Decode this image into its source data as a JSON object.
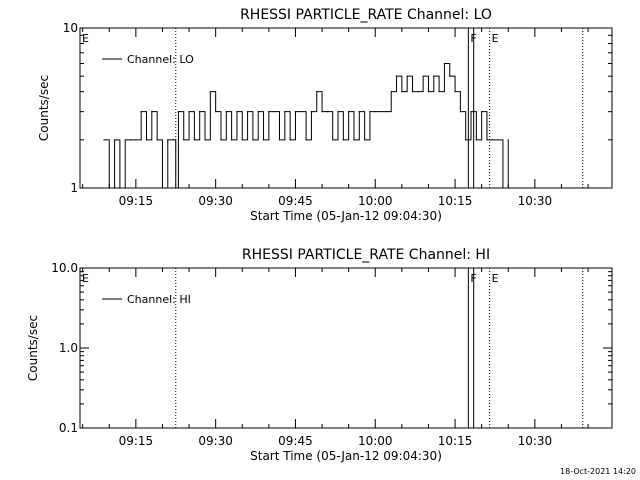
{
  "footer": {
    "timestamp": "18-Oct-2021 14:20"
  },
  "colors": {
    "background": "#ffffff",
    "ink": "#000000"
  },
  "chart_data": [
    {
      "type": "line",
      "title": "RHESSI PARTICLE_RATE Channel: LO",
      "xlabel": "Start Time (05-Jan-12 09:04:30)",
      "ylabel": "Counts/sec",
      "yscale": "log",
      "ylim": [
        1,
        10
      ],
      "y_ticks": [
        1,
        10
      ],
      "y_tick_labels": [
        "1",
        "10"
      ],
      "xlim": [
        "09:04:30",
        "10:44:30"
      ],
      "x_ticks": [
        "09:15",
        "09:30",
        "09:45",
        "10:00",
        "10:15",
        "10:30"
      ],
      "grid": false,
      "legend": {
        "placement": "top-left",
        "entries": [
          "Channel: LO"
        ]
      },
      "vlines": [
        {
          "time": "09:22:30",
          "style": "dotted"
        },
        {
          "time": "10:17:30",
          "style": "solid"
        },
        {
          "time": "10:18:30",
          "style": "solid"
        },
        {
          "time": "10:21:30",
          "style": "dotted"
        },
        {
          "time": "10:39:00",
          "style": "dotted"
        }
      ],
      "markers": [
        {
          "label": "E",
          "time": "09:04:30"
        },
        {
          "label": "F",
          "time": "10:17:30"
        },
        {
          "label": "E",
          "time": "10:21:30"
        }
      ],
      "series": [
        {
          "name": "Channel: LO",
          "x": [
            "09:09",
            "09:10",
            "09:11",
            "09:12",
            "09:13",
            "09:14",
            "09:15",
            "09:16",
            "09:17",
            "09:18",
            "09:19",
            "09:20",
            "09:21",
            "09:22",
            "09:22:30",
            "09:23",
            "09:24",
            "09:25",
            "09:26",
            "09:27",
            "09:28",
            "09:29",
            "09:30",
            "09:31",
            "09:32",
            "09:33",
            "09:34",
            "09:35",
            "09:36",
            "09:37",
            "09:38",
            "09:39",
            "09:40",
            "09:41",
            "09:42",
            "09:43",
            "09:44",
            "09:45",
            "09:46",
            "09:47",
            "09:48",
            "09:49",
            "09:50",
            "09:51",
            "09:52",
            "09:53",
            "09:54",
            "09:55",
            "09:56",
            "09:57",
            "09:58",
            "09:59",
            "10:00",
            "10:01",
            "10:02",
            "10:03",
            "10:04",
            "10:05",
            "10:06",
            "10:07",
            "10:08",
            "10:09",
            "10:10",
            "10:11",
            "10:12",
            "10:13",
            "10:14",
            "10:15",
            "10:16",
            "10:17",
            "10:18",
            "10:19",
            "10:20",
            "10:21",
            "10:22",
            "10:23",
            "10:24",
            "10:25"
          ],
          "values": [
            2,
            1,
            2,
            1,
            2,
            2,
            2,
            3,
            2,
            3,
            2,
            1,
            2,
            2,
            1,
            3,
            2,
            3,
            2,
            3,
            2,
            4,
            3,
            2,
            3,
            2,
            3,
            2,
            3,
            2,
            3,
            2,
            3,
            3,
            2,
            3,
            2,
            3,
            3,
            2,
            3,
            4,
            3,
            3,
            2,
            3,
            2,
            3,
            2,
            3,
            2,
            3,
            3,
            3,
            3,
            4,
            5,
            4,
            5,
            4,
            4,
            5,
            4,
            5,
            4,
            6,
            5,
            4,
            3,
            2,
            3,
            2,
            3,
            2,
            2,
            2,
            1,
            2
          ]
        }
      ]
    },
    {
      "type": "line",
      "title": "RHESSI PARTICLE_RATE Channel: HI",
      "xlabel": "Start Time (05-Jan-12 09:04:30)",
      "ylabel": "Counts/sec",
      "yscale": "log",
      "ylim": [
        0.1,
        10
      ],
      "y_ticks": [
        0.1,
        1,
        10
      ],
      "y_tick_labels": [
        "0.1",
        "1.0",
        "10.0"
      ],
      "xlim": [
        "09:04:30",
        "10:44:30"
      ],
      "x_ticks": [
        "09:15",
        "09:30",
        "09:45",
        "10:00",
        "10:15",
        "10:30"
      ],
      "grid": false,
      "legend": {
        "placement": "top-left",
        "entries": [
          "Channel: HI"
        ]
      },
      "vlines": [
        {
          "time": "09:22:30",
          "style": "dotted"
        },
        {
          "time": "10:17:30",
          "style": "solid"
        },
        {
          "time": "10:18:30",
          "style": "solid"
        },
        {
          "time": "10:21:30",
          "style": "dotted"
        },
        {
          "time": "10:39:00",
          "style": "dotted"
        }
      ],
      "markers": [
        {
          "label": "E",
          "time": "09:04:30"
        },
        {
          "label": "F",
          "time": "10:17:30"
        },
        {
          "label": "E",
          "time": "10:21:30"
        }
      ],
      "series": [
        {
          "name": "Channel: HI",
          "x": [],
          "values": []
        }
      ]
    }
  ]
}
